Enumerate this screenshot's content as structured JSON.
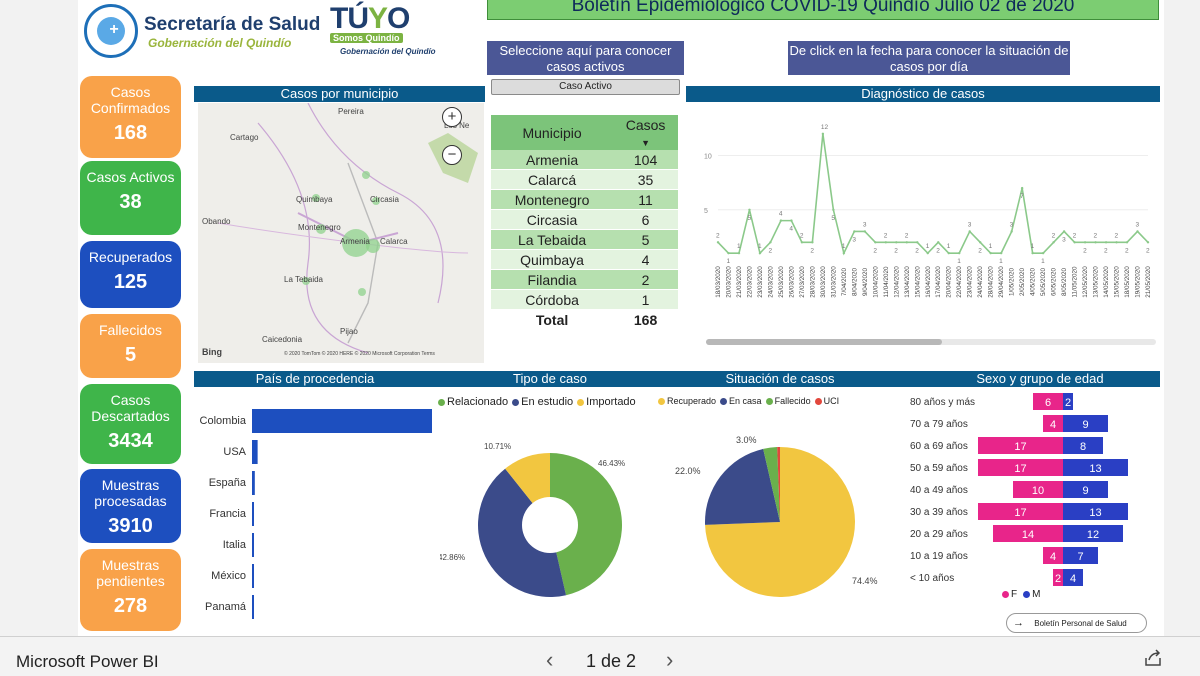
{
  "header": {
    "logo1_title": "Secretaría de Salud",
    "logo1_subtitle": "Gobernación del Quindío",
    "logo2_big_a": "TÚ",
    "logo2_big_b": "Y",
    "logo2_big_c": "O",
    "logo2_somos": "Somos Quindío",
    "logo2_gob": "Gobernación del Quindío",
    "report_title": "Boletín Epidemiológico COVID-19 Quindío Julio 02 de 2020",
    "hint_active": "Seleccione aquí para conocer casos activos",
    "hint_date": "De click en la fecha para conocer la situación de casos por día",
    "btn_active": "Caso Activo"
  },
  "cards": [
    {
      "label": "Casos Confirmados",
      "value": "168",
      "color": "#f9a249"
    },
    {
      "label": "Casos Activos",
      "value": "38",
      "color": "#3fb54a"
    },
    {
      "label": "Recuperados",
      "value": "125",
      "color": "#1d4fbf"
    },
    {
      "label": "Fallecidos",
      "value": "5",
      "color": "#f9a249"
    },
    {
      "label": "Casos Descartados",
      "value": "3434",
      "color": "#3fb54a"
    },
    {
      "label": "Muestras procesadas",
      "value": "3910",
      "color": "#1d4fbf"
    },
    {
      "label": "Muestras pendientes",
      "value": "278",
      "color": "#f9a249"
    }
  ],
  "sections": {
    "map": "Casos por municipio",
    "line": "Diagnóstico de casos",
    "country": "País de procedencia",
    "type": "Tipo de caso",
    "situation": "Situación de casos",
    "sex_age": "Sexo y grupo de edad"
  },
  "map": {
    "labels": [
      "Pereira",
      "Cartago",
      "Los Ne",
      "Quimbaya",
      "Circasia",
      "Obando",
      "Montenegro",
      "Armenia",
      "Calarca",
      "La Tebaida",
      "Pijao",
      "Caicedonia"
    ],
    "bing": "Bing",
    "copyright": "© 2020 TomTom © 2020 HERE © 2020 Microsoft Corporation Terms",
    "zoom_in": "+",
    "zoom_out": "−"
  },
  "municipios": {
    "col_name": "Municipio",
    "col_cases": "Casos",
    "rows": [
      {
        "name": "Armenia",
        "cases": "104"
      },
      {
        "name": "Calarcá",
        "cases": "35"
      },
      {
        "name": "Montenegro",
        "cases": "11"
      },
      {
        "name": "Circasia",
        "cases": "6"
      },
      {
        "name": "La Tebaida",
        "cases": "5"
      },
      {
        "name": "Quimbaya",
        "cases": "4"
      },
      {
        "name": "Filandia",
        "cases": "2"
      },
      {
        "name": "Córdoba",
        "cases": "1"
      }
    ],
    "total_label": "Total",
    "total_value": "168"
  },
  "chart_data": [
    {
      "type": "line",
      "y_ticks": [
        5,
        10
      ],
      "ylim": [
        0,
        13
      ],
      "color": "#8bc98a",
      "x": [
        "18/03/2020",
        "20/03/2020",
        "21/03/2020",
        "22/03/2020",
        "23/03/2020",
        "24/03/2020",
        "25/03/2020",
        "26/03/2020",
        "27/03/2020",
        "28/03/2020",
        "30/03/2020",
        "31/03/2020",
        "7/04/2020",
        "8/04/2020",
        "9/04/2020",
        "10/04/2020",
        "11/04/2020",
        "12/04/2020",
        "13/04/2020",
        "15/04/2020",
        "16/04/2020",
        "17/04/2020",
        "20/04/2020",
        "22/04/2020",
        "23/04/2020",
        "24/04/2020",
        "28/04/2020",
        "29/04/2020",
        "1/05/2020",
        "2/05/2020",
        "4/05/2020",
        "5/05/2020",
        "6/05/2020",
        "8/05/2020",
        "11/05/2020",
        "12/05/2020",
        "13/05/2020",
        "14/05/2020",
        "15/05/2020",
        "18/05/2020",
        "19/05/2020",
        "21/05/2020"
      ],
      "values": [
        2,
        1,
        1,
        5,
        1,
        2,
        4,
        4,
        2,
        2,
        12,
        5,
        1,
        3,
        3,
        2,
        2,
        2,
        2,
        2,
        1,
        2,
        1,
        1,
        3,
        2,
        1,
        1,
        3,
        7,
        1,
        1,
        2,
        3,
        2,
        2,
        2,
        2,
        2,
        2,
        3,
        2
      ]
    },
    {
      "type": "bar",
      "orientation": "horizontal",
      "categories": [
        "Colombia",
        "USA",
        "España",
        "Francia",
        "Italia",
        "México",
        "Panamá"
      ],
      "values": [
        128,
        4,
        2,
        1,
        1,
        1,
        1
      ],
      "color": "#1d4fbf"
    },
    {
      "type": "pie",
      "donut": true,
      "legend": "top",
      "labels": [
        "Relacionado",
        "En estudio",
        "Importado"
      ],
      "values": [
        46.43,
        42.86,
        10.71
      ],
      "value_labels": [
        "46.43%",
        "42.86%",
        "10.71%"
      ],
      "colors": [
        "#6ab04c",
        "#3b4b8a",
        "#f2c640"
      ]
    },
    {
      "type": "pie",
      "donut": false,
      "legend": "top",
      "labels": [
        "Recuperado",
        "En casa",
        "Fallecido",
        "UCI"
      ],
      "values": [
        74.4,
        22.0,
        3.0,
        0.6
      ],
      "value_labels": [
        "74.4%",
        "22.0%",
        "3.0%",
        ""
      ],
      "colors": [
        "#f2c640",
        "#3b4b8a",
        "#6ab04c",
        "#e2473c"
      ]
    },
    {
      "type": "bar",
      "orientation": "horizontal",
      "stacked": "diverging",
      "categories": [
        "80 años y más",
        "70 a 79 años",
        "60 a 69 años",
        "50 a 59 años",
        "40 a 49 años",
        "30 a 39 años",
        "20 a 29 años",
        "10 a 19 años",
        "< 10 años"
      ],
      "series": [
        {
          "name": "F",
          "values": [
            6,
            4,
            17,
            17,
            10,
            17,
            14,
            4,
            2
          ],
          "color": "#e8258a"
        },
        {
          "name": "M",
          "values": [
            2,
            9,
            8,
            13,
            9,
            13,
            12,
            7,
            4
          ],
          "color": "#2a3fc4"
        }
      ]
    }
  ],
  "footer_button": "Boletín Personal de Salud",
  "taskbar": {
    "app_name": "Microsoft Power BI",
    "page": "1 de 2",
    "prev": "‹",
    "next": "›"
  }
}
